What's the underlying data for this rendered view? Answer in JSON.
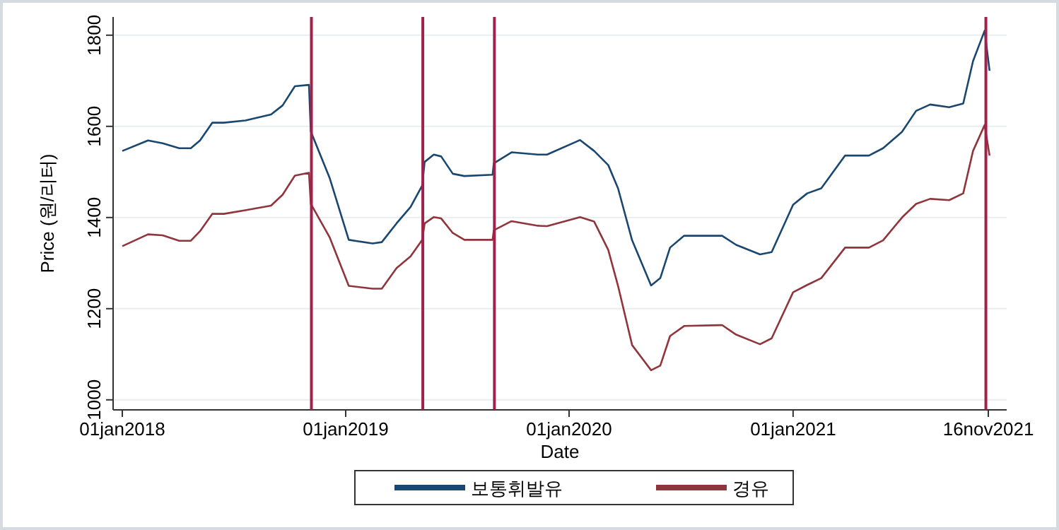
{
  "chart_data": {
    "type": "line",
    "xlabel": "Date",
    "ylabel": "Price (원/리터)",
    "x": [
      "2018-01-01",
      "2018-02-12",
      "2018-03-08",
      "2018-04-04",
      "2018-04-23",
      "2018-05-08",
      "2018-05-28",
      "2018-06-16",
      "2018-07-21",
      "2018-09-01",
      "2018-09-20",
      "2018-10-10",
      "2018-11-02",
      "2018-11-05",
      "2018-12-06",
      "2019-01-06",
      "2019-02-14",
      "2019-03-01",
      "2019-03-25",
      "2019-04-17",
      "2019-05-06",
      "2019-05-10",
      "2019-05-25",
      "2019-06-06",
      "2019-06-25",
      "2019-07-14",
      "2019-08-29",
      "2019-08-31",
      "2019-09-29",
      "2019-11-11",
      "2019-11-26",
      "2020-01-19",
      "2020-02-11",
      "2020-03-05",
      "2020-03-21",
      "2020-04-13",
      "2020-05-14",
      "2020-05-29",
      "2020-06-14",
      "2020-07-07",
      "2020-09-07",
      "2020-09-30",
      "2020-11-08",
      "2020-11-27",
      "2021-01-01",
      "2021-01-24",
      "2021-02-16",
      "2021-03-27",
      "2021-05-05",
      "2021-05-28",
      "2021-06-28",
      "2021-07-21",
      "2021-08-13",
      "2021-09-13",
      "2021-10-06",
      "2021-10-22",
      "2021-11-10",
      "2021-11-18"
    ],
    "series": [
      {
        "name": "보통휘발유",
        "color": "#1a476f",
        "values": [
          1546,
          1569,
          1563,
          1552,
          1552,
          1569,
          1608,
          1608,
          1613,
          1626,
          1646,
          1688,
          1691,
          1589,
          1486,
          1351,
          1343,
          1346,
          1387,
          1423,
          1470,
          1522,
          1538,
          1534,
          1496,
          1491,
          1494,
          1519,
          1543,
          1538,
          1538,
          1570,
          1546,
          1515,
          1464,
          1350,
          1251,
          1267,
          1334,
          1360,
          1360,
          1340,
          1319,
          1324,
          1428,
          1453,
          1464,
          1536,
          1536,
          1552,
          1588,
          1634,
          1648,
          1642,
          1650,
          1743,
          1810,
          1722
        ]
      },
      {
        "name": "경유",
        "color": "#90353b",
        "values": [
          1337,
          1363,
          1361,
          1349,
          1349,
          1370,
          1408,
          1408,
          1416,
          1426,
          1450,
          1492,
          1498,
          1430,
          1356,
          1250,
          1244,
          1244,
          1289,
          1315,
          1351,
          1387,
          1401,
          1398,
          1366,
          1351,
          1351,
          1372,
          1392,
          1382,
          1381,
          1401,
          1391,
          1329,
          1250,
          1120,
          1065,
          1075,
          1140,
          1162,
          1164,
          1143,
          1122,
          1135,
          1236,
          1252,
          1267,
          1334,
          1334,
          1350,
          1400,
          1430,
          1441,
          1438,
          1453,
          1546,
          1603,
          1536
        ]
      }
    ],
    "xlim": [
      "2017-12-17",
      "2021-12-16"
    ],
    "xticks": [
      {
        "value": "2018-01-01",
        "label": "01jan2018"
      },
      {
        "value": "2019-01-01",
        "label": "01jan2019"
      },
      {
        "value": "2020-01-01",
        "label": "01jan2020"
      },
      {
        "value": "2021-01-01",
        "label": "01jan2021"
      },
      {
        "value": "2021-11-16",
        "label": "16nov2021"
      }
    ],
    "ylim": [
      978,
      1840
    ],
    "yticks": [
      1000,
      1200,
      1400,
      1600,
      1800
    ],
    "ref_lines": [
      {
        "axis": "x",
        "value": "2018-11-06",
        "color": "#a0224a"
      },
      {
        "axis": "x",
        "value": "2019-05-07",
        "color": "#a0224a"
      },
      {
        "axis": "x",
        "value": "2019-09-01",
        "color": "#a0224a"
      },
      {
        "axis": "x",
        "value": "2021-11-12",
        "color": "#a0224a"
      }
    ],
    "grid": "y",
    "legend": "bottom",
    "line_style": "solid",
    "marker": "none"
  }
}
